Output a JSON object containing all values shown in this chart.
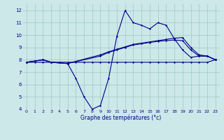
{
  "xlabel": "Graphe des températures (°c)",
  "bg_color": "#cce8e8",
  "line_color": "#00008b",
  "grid_color": "#9ec8c8",
  "xlim": [
    -0.5,
    23.5
  ],
  "ylim": [
    4,
    12.5
  ],
  "yticks": [
    4,
    5,
    6,
    7,
    8,
    9,
    10,
    11,
    12
  ],
  "xticks": [
    0,
    1,
    2,
    3,
    4,
    5,
    6,
    7,
    8,
    9,
    10,
    11,
    12,
    13,
    14,
    15,
    16,
    17,
    18,
    19,
    20,
    21,
    22,
    23
  ],
  "line1_x": [
    0,
    1,
    2,
    3,
    4,
    5,
    6,
    7,
    8,
    9,
    10,
    11,
    12,
    13,
    14,
    15,
    16,
    17,
    18,
    19,
    20,
    21,
    22,
    23
  ],
  "line1_y": [
    7.8,
    7.8,
    7.8,
    7.8,
    7.8,
    7.8,
    7.8,
    7.8,
    7.8,
    7.8,
    7.8,
    7.8,
    7.8,
    7.8,
    7.8,
    7.8,
    7.8,
    7.8,
    7.8,
    7.8,
    7.8,
    7.8,
    7.8,
    8.0
  ],
  "line2_x": [
    0,
    2,
    3,
    5,
    6,
    7,
    8,
    9,
    10,
    11,
    12,
    13,
    14,
    15,
    16,
    17,
    18,
    19,
    20,
    21,
    22,
    23
  ],
  "line2_y": [
    7.8,
    8.0,
    7.8,
    7.7,
    6.5,
    5.0,
    4.0,
    4.3,
    6.5,
    9.9,
    12.0,
    11.0,
    10.8,
    10.5,
    11.0,
    10.8,
    9.7,
    8.8,
    8.2,
    8.3,
    8.3,
    8.0
  ],
  "line3_x": [
    0,
    2,
    3,
    5,
    9,
    10,
    11,
    12,
    13,
    14,
    15,
    16,
    17,
    18,
    19,
    20,
    21,
    22,
    23
  ],
  "line3_y": [
    7.8,
    8.0,
    7.8,
    7.7,
    8.3,
    8.6,
    8.8,
    9.0,
    9.2,
    9.3,
    9.4,
    9.5,
    9.55,
    9.6,
    9.55,
    8.8,
    8.3,
    8.3,
    8.0
  ],
  "line4_x": [
    0,
    2,
    3,
    5,
    9,
    10,
    11,
    12,
    13,
    14,
    15,
    16,
    17,
    18,
    19,
    20,
    21,
    22,
    23
  ],
  "line4_y": [
    7.8,
    8.0,
    7.8,
    7.7,
    8.4,
    8.65,
    8.85,
    9.05,
    9.25,
    9.35,
    9.45,
    9.55,
    9.65,
    9.75,
    9.8,
    9.0,
    8.4,
    8.3,
    8.0
  ]
}
